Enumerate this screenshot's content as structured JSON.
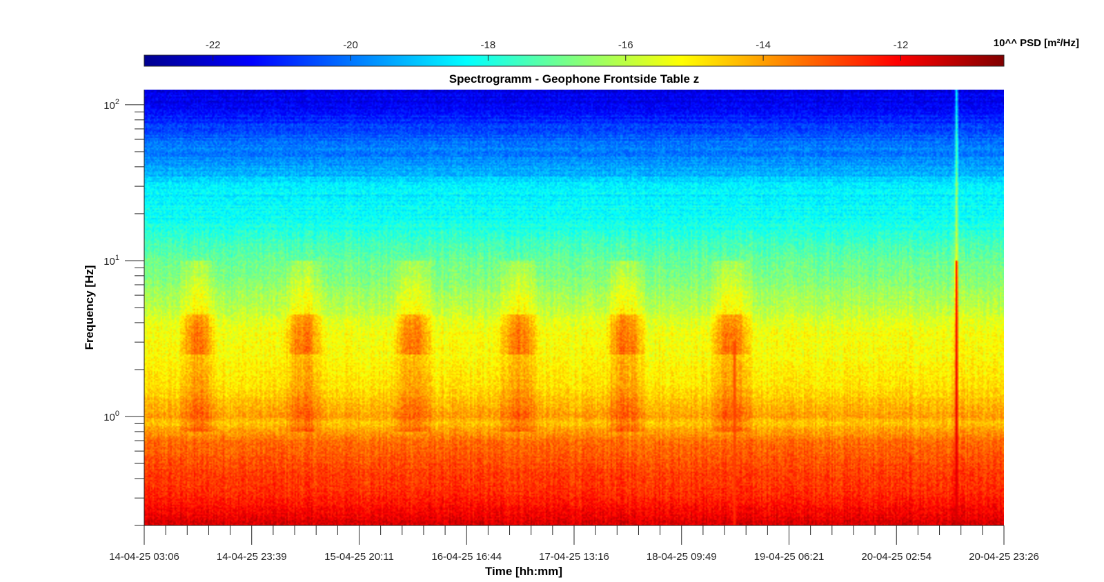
{
  "chart_data": {
    "type": "heatmap",
    "title": "Spectrogramm - Geophone Frontside Table z",
    "xlabel": "Time [hh:mm]",
    "ylabel": "Frequency [Hz]",
    "y_scale": "log",
    "ylim": [
      0.2,
      125
    ],
    "x_tick_labels": [
      "14-04-25 03:06",
      "14-04-25 23:39",
      "15-04-25 20:11",
      "16-04-25 16:44",
      "17-04-25 13:16",
      "18-04-25 09:49",
      "19-04-25 06:21",
      "20-04-25 02:54",
      "20-04-25 23:26"
    ],
    "y_tick_labels": [
      {
        "base": "10",
        "exp": "0",
        "value": 1
      },
      {
        "base": "10",
        "exp": "1",
        "value": 10
      },
      {
        "base": "10",
        "exp": "2",
        "value": 100
      }
    ],
    "colorbar": {
      "label": "10^^ PSD [m²/Hz]",
      "range": [
        -23,
        -10.5
      ],
      "ticks": [
        -22,
        -20,
        -18,
        -16,
        -14,
        -12
      ],
      "tick_labels": [
        "-22",
        "-20",
        "-18",
        "-16",
        "-14",
        "-12"
      ],
      "colormap": "jet"
    },
    "profile_log_psd_vs_freq": {
      "freq_hz": [
        0.2,
        0.3,
        0.5,
        0.7,
        0.9,
        1.0,
        1.5,
        2.5,
        3.5,
        5,
        8,
        10,
        15,
        20,
        25,
        30,
        40,
        60,
        80,
        100,
        125
      ],
      "log_psd": [
        -11.6,
        -12.5,
        -13.0,
        -13.4,
        -14.5,
        -14.0,
        -14.8,
        -15.2,
        -15.3,
        -16.0,
        -16.8,
        -17.0,
        -17.8,
        -18.2,
        -18.3,
        -18.6,
        -19.5,
        -20.2,
        -21.0,
        -21.5,
        -21.8
      ]
    },
    "daily_activity_bursts": {
      "freq_band_hz": [
        2.5,
        4.5
      ],
      "peak_log_psd": -13.5,
      "approx_periods": [
        [
          "14-04-25 09:30",
          "14-04-25 17:00"
        ],
        [
          "15-04-25 05:30",
          "15-04-25 13:30"
        ],
        [
          "16-04-25 02:30",
          "16-04-25 10:30"
        ],
        [
          "16-04-25 22:30",
          "17-04-25 07:00"
        ],
        [
          "17-04-25 19:00",
          "18-04-25 03:30"
        ],
        [
          "18-04-25 15:00",
          "18-04-25 23:30"
        ]
      ]
    },
    "transient_events": [
      {
        "time": "20-04-25 14:30",
        "freq_range_hz": [
          0.2,
          125
        ],
        "peak_log_psd": -11.5
      },
      {
        "time": "18-04-25 20:00",
        "freq_range_hz": [
          0.2,
          3
        ],
        "peak_log_psd": -12.8
      }
    ]
  }
}
